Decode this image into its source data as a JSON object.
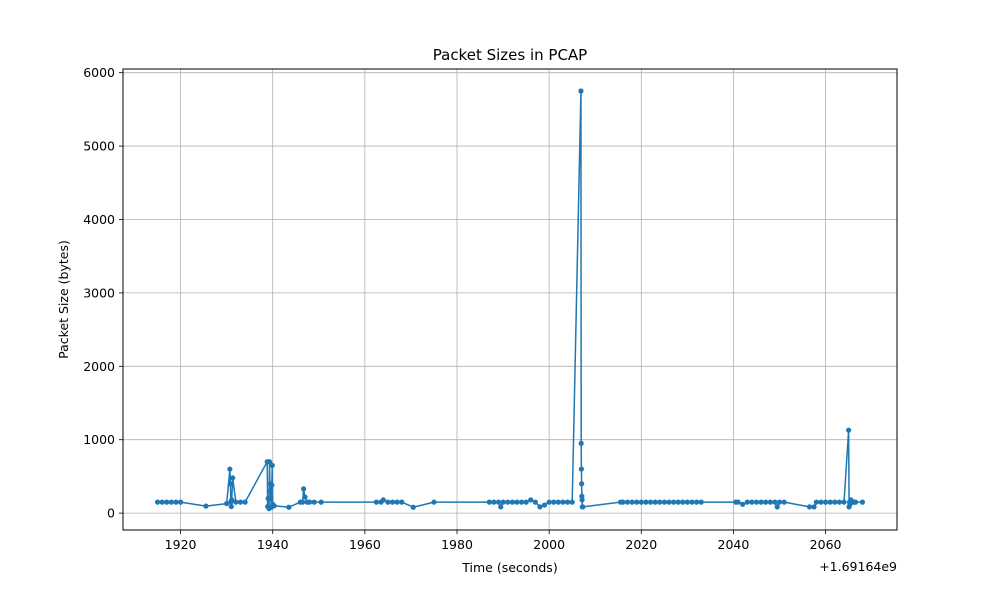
{
  "chart_data": {
    "type": "line",
    "title": "Packet Sizes in PCAP",
    "xlabel": "Time (seconds)",
    "ylabel": "Packet Size (bytes)",
    "x_offset_label": "+1.69164e9",
    "xlim": [
      1907.5,
      2075.5
    ],
    "ylim": [
      -230,
      6050
    ],
    "xticks": [
      1920,
      1940,
      1960,
      1980,
      2000,
      2020,
      2040,
      2060
    ],
    "yticks": [
      0,
      1000,
      2000,
      3000,
      4000,
      5000,
      6000
    ],
    "grid": true,
    "color": "#1f77b4",
    "series": [
      {
        "x": [
          1915,
          1916,
          1917,
          1918,
          1919,
          1920,
          1925.5,
          1930,
          1930.7,
          1930.8,
          1930.9,
          1931,
          1931.1,
          1931.3,
          1932,
          1933,
          1934,
          1938.8,
          1938.9,
          1939,
          1939.2,
          1939.3,
          1939.4,
          1939.5,
          1939.6,
          1939.7,
          1939.8,
          1939.9,
          1940,
          1940.3,
          1943.5,
          1946,
          1946.5,
          1946.7,
          1947,
          1947.5,
          1948,
          1949,
          1950.5,
          1962.5,
          1963.5,
          1964,
          1965,
          1966,
          1967,
          1968,
          1970.5,
          1975,
          1987,
          1988,
          1989,
          1989.5,
          1990,
          1991,
          1992,
          1993,
          1994,
          1995,
          1996,
          1997,
          1998,
          1999,
          2000,
          2001,
          2002,
          2003,
          2004,
          2005,
          2006.9,
          2006.95,
          2007,
          2007.05,
          2007.1,
          2007.15,
          2007.2,
          2007.3,
          2015.5,
          2016,
          2017,
          2018,
          2019,
          2020,
          2021,
          2022,
          2023,
          2024,
          2025,
          2026,
          2027,
          2028,
          2029,
          2030,
          2031,
          2032,
          2033,
          2040.5,
          2041,
          2042,
          2043,
          2044,
          2045,
          2046,
          2047,
          2048,
          2049,
          2049.5,
          2050,
          2051,
          2056.5,
          2057.5,
          2058,
          2059,
          2060,
          2061,
          2062,
          2063,
          2064,
          2065,
          2065.1,
          2065.2,
          2065.3,
          2065.5,
          2066,
          2066.3,
          2066.5,
          2068
        ],
        "y": [
          150,
          150,
          150,
          150,
          150,
          150,
          95,
          130,
          600,
          400,
          150,
          90,
          180,
          480,
          150,
          150,
          150,
          700,
          90,
          200,
          60,
          700,
          300,
          400,
          200,
          80,
          380,
          650,
          120,
          100,
          80,
          150,
          150,
          330,
          220,
          150,
          150,
          150,
          150,
          150,
          150,
          180,
          150,
          150,
          150,
          150,
          80,
          150,
          150,
          150,
          150,
          85,
          150,
          150,
          150,
          150,
          150,
          150,
          180,
          150,
          85,
          110,
          150,
          150,
          150,
          150,
          150,
          150,
          5750,
          950,
          600,
          400,
          230,
          180,
          85,
          85,
          150,
          150,
          150,
          150,
          150,
          150,
          150,
          150,
          150,
          150,
          150,
          150,
          150,
          150,
          150,
          150,
          150,
          150,
          150,
          150,
          150,
          120,
          150,
          150,
          150,
          150,
          150,
          150,
          150,
          85,
          150,
          150,
          85,
          85,
          150,
          150,
          150,
          150,
          150,
          150,
          150,
          1130,
          85,
          150,
          120,
          180,
          150,
          150,
          150,
          150
        ]
      }
    ]
  }
}
